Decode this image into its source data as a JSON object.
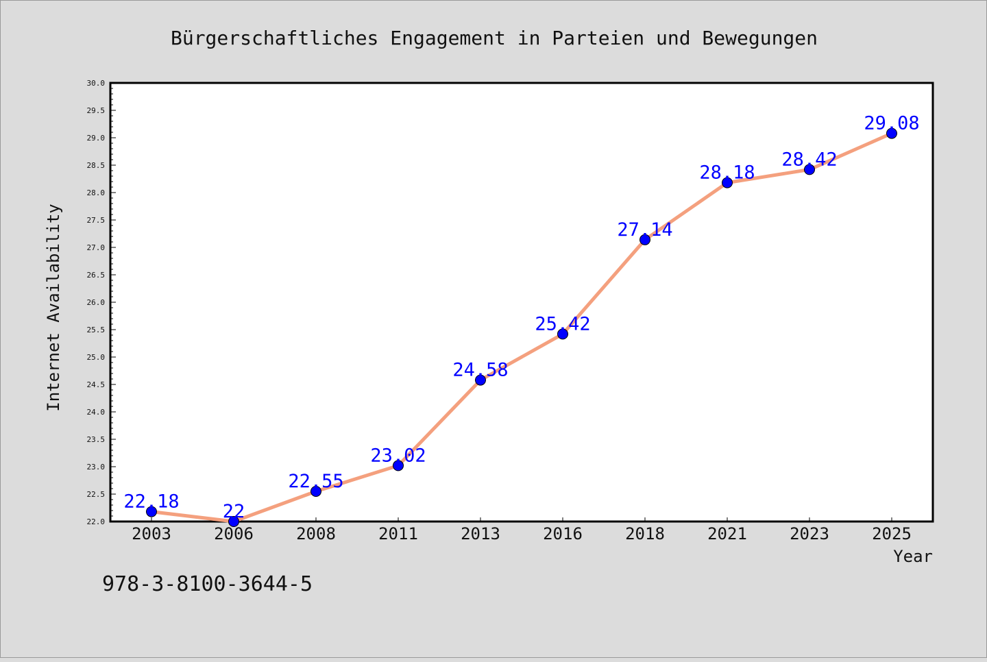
{
  "chart_data": {
    "type": "line",
    "title": "Bürgerschaftliches Engagement in Parteien und Bewegungen",
    "xlabel": "Year",
    "ylabel": "Internet Availability",
    "categories": [
      "2003",
      "2006",
      "2008",
      "2011",
      "2013",
      "2016",
      "2018",
      "2021",
      "2023",
      "2025"
    ],
    "values": [
      22.18,
      22,
      22.55,
      23.02,
      24.58,
      25.42,
      27.14,
      28.18,
      28.42,
      29.08
    ],
    "data_labels": [
      "22.18",
      "22",
      "22.55",
      "23.02",
      "24.58",
      "25.42",
      "27.14",
      "28.18",
      "28.42",
      "29.08"
    ],
    "ylim": [
      22.0,
      30.0
    ],
    "yticks": [
      "22.0",
      "22.5",
      "23.0",
      "23.5",
      "24.0",
      "24.5",
      "25.0",
      "25.5",
      "26.0",
      "26.5",
      "27.0",
      "27.5",
      "28.0",
      "28.5",
      "29.0",
      "29.5",
      "30.0"
    ],
    "grid": false,
    "legend": "none",
    "colors": {
      "line": "#f4a07e",
      "marker": "#0000ff",
      "label": "#0000ff",
      "background": "#dcdcdc",
      "plot_bg": "#ffffff"
    }
  },
  "footer": {
    "isbn": "978-3-8100-3644-5"
  }
}
